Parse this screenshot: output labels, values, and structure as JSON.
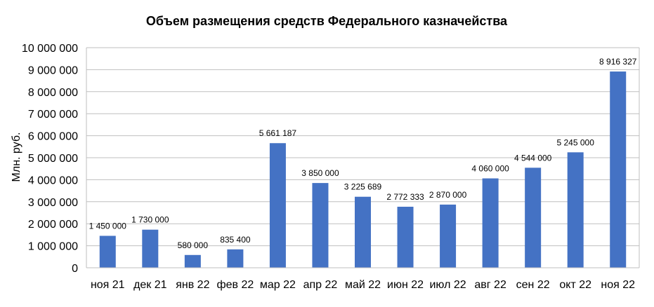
{
  "chart_data": {
    "type": "bar",
    "title": "Объем размещения средств Федерального казначейства",
    "ylabel": "Млн. руб.",
    "xlabel": "",
    "ylim": [
      0,
      10000000
    ],
    "yticks": [
      0,
      1000000,
      2000000,
      3000000,
      4000000,
      5000000,
      6000000,
      7000000,
      8000000,
      9000000,
      10000000
    ],
    "ytick_labels": [
      "0",
      "1 000 000",
      "2 000 000",
      "3 000 000",
      "4 000 000",
      "5 000 000",
      "6 000 000",
      "7 000 000",
      "8 000 000",
      "9 000 000",
      "10 000 000"
    ],
    "grid": true,
    "bar_color": "#4472C4",
    "categories": [
      "ноя 21",
      "дек 21",
      "янв 22",
      "фев 22",
      "мар 22",
      "апр 22",
      "май 22",
      "июн 22",
      "июл 22",
      "авг 22",
      "сен 22",
      "окт 22",
      "ноя 22"
    ],
    "values": [
      1450000,
      1730000,
      580000,
      835400,
      5661187,
      3850000,
      3225689,
      2772333,
      2870000,
      4060000,
      4544000,
      5245000,
      8916327
    ],
    "data_labels": [
      "1 450 000",
      "1 730 000",
      "580 000",
      "835 400",
      "5 661 187",
      "3 850 000",
      "3 225 689",
      "2 772 333",
      "2 870 000",
      "4 060 000",
      "4 544 000",
      "5 245 000",
      "8 916 327"
    ]
  }
}
